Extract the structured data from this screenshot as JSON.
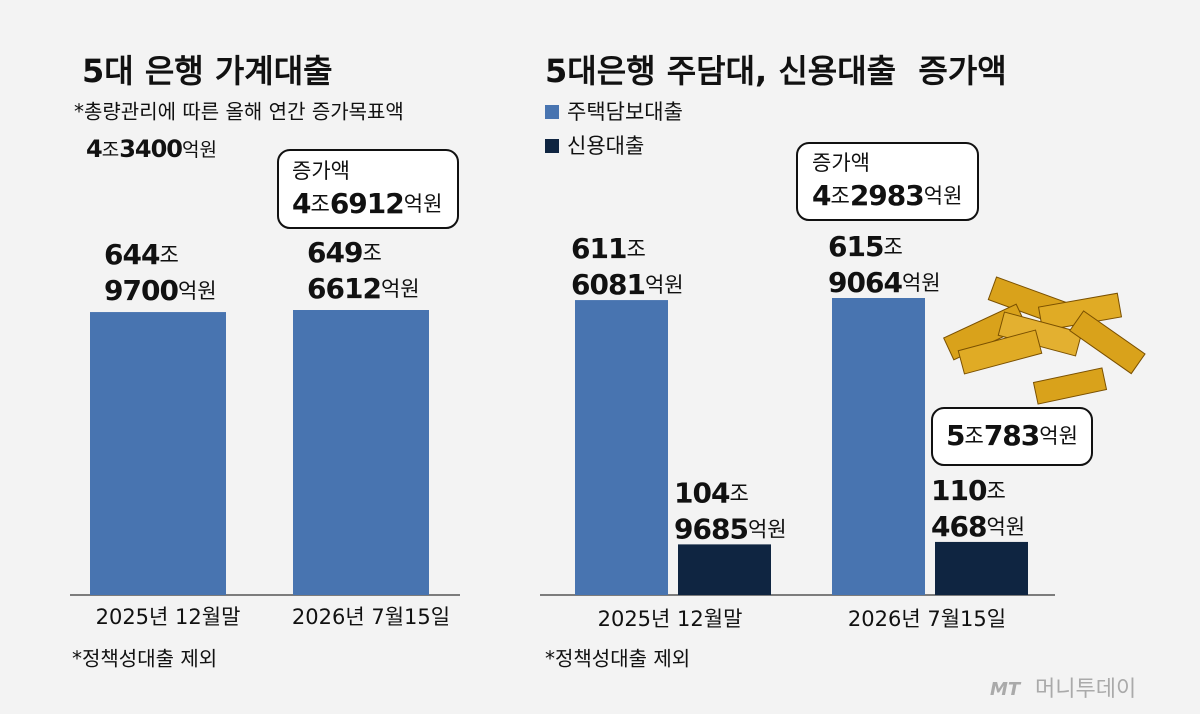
{
  "chart_data": [
    {
      "type": "bar",
      "title": "5대 은행 가계대출",
      "annotations": [
        "*총량관리에 따른 올해 연간 증가목표액",
        "4조3400억원",
        "증가액",
        "4조6912억원"
      ],
      "categories": [
        "2025년 12월말",
        "2026년 7월15일"
      ],
      "values": [
        6449700,
        6496612
      ],
      "value_labels": [
        "644조 9700억원",
        "649조 6612억원"
      ],
      "color": "#4874b0",
      "note": "*정책성대출 제외"
    },
    {
      "type": "grouped_bar",
      "title": "5대은행 주담대, 신용대출  증가액",
      "annotations": [
        "증가액",
        "4조2983억원",
        "5조783억원"
      ],
      "categories": [
        "2025년 12월말",
        "2026년 7월15일"
      ],
      "series": [
        {
          "name": "주택담보대출",
          "color": "#4874b0",
          "values": [
            6116081,
            6159064
          ],
          "value_labels": [
            "611조 6081억원",
            "615조 9064억원"
          ]
        },
        {
          "name": "신용대출",
          "color": "#0f2541",
          "values": [
            1049685,
            1100468
          ],
          "value_labels": [
            "104조 9685억원",
            "110조 468억원"
          ]
        }
      ],
      "note": "*정책성대출 제외"
    }
  ],
  "source": "머니투데이"
}
